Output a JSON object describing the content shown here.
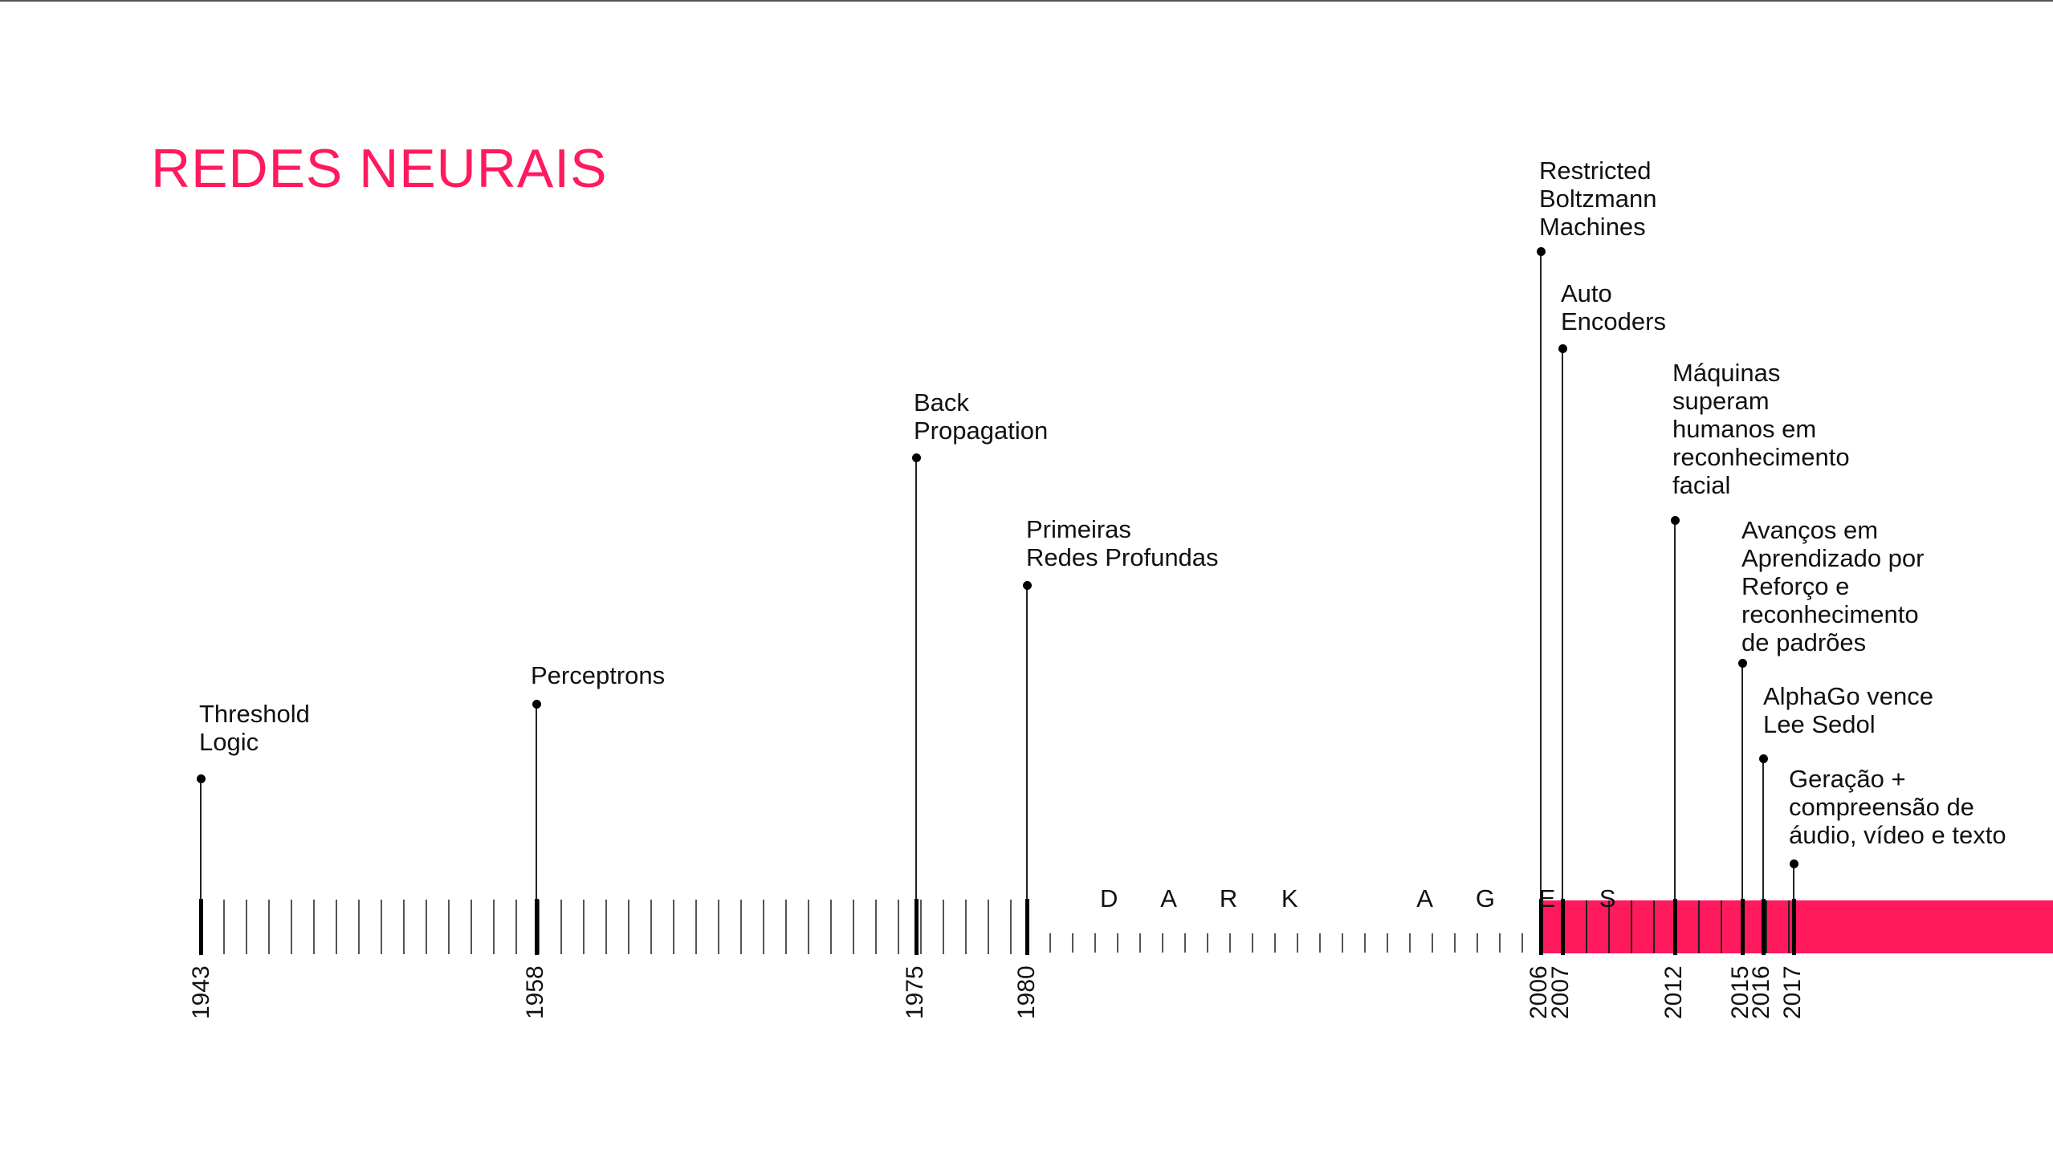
{
  "title": "REDES NEURAIS",
  "dark_ages_label": "D A R K    A G E S",
  "colors": {
    "accent": "#ff1a5e",
    "ink": "#111111",
    "tick": "#555555"
  },
  "events": [
    {
      "year": "1943",
      "label": "Threshold\nLogic"
    },
    {
      "year": "1958",
      "label": "Perceptrons"
    },
    {
      "year": "1975",
      "label": "Back\nPropagation"
    },
    {
      "year": "1980",
      "label": "Primeiras\nRedes Profundas"
    },
    {
      "year": "2006",
      "label": "Restricted\nBoltzmann\nMachines"
    },
    {
      "year": "2007",
      "label": "Auto\nEncoders"
    },
    {
      "year": "2012",
      "label": "Máquinas\nsuperam\nhumanos em\nreconhecimento\nfacial"
    },
    {
      "year": "2015",
      "label": "Avanços em\nAprendizado por\nReforço e\nreconhecimento\nde padrões"
    },
    {
      "year": "2016",
      "label": "AlphaGo vence\nLee Sedol"
    },
    {
      "year": "2017",
      "label": "Geração +\ncompreensão de\náudio, vídeo e texto"
    }
  ]
}
